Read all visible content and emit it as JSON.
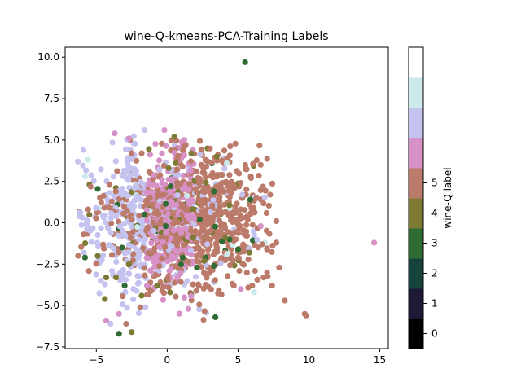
{
  "chart_data": {
    "type": "scatter",
    "title": "wine-Q-kmeans-PCA-Training Labels",
    "xlabel": "",
    "ylabel": "",
    "xlim": [
      -7.2,
      15.6
    ],
    "ylim": [
      -7.6,
      10.6
    ],
    "x_ticks": [
      -5,
      0,
      5,
      10,
      15
    ],
    "y_ticks": [
      -7.5,
      -5.0,
      -2.5,
      0.0,
      2.5,
      5.0,
      7.5,
      10.0
    ],
    "x_tick_labels": [
      "−5",
      "0",
      "5",
      "10",
      "15"
    ],
    "y_tick_labels": [
      "−7.5",
      "−5.0",
      "−2.5",
      "0.0",
      "2.5",
      "5.0",
      "7.5",
      "10.0"
    ],
    "grid": false,
    "colorbar": {
      "label": "wine-Q label",
      "tick_values": [
        0,
        1,
        2,
        3,
        4,
        5
      ],
      "tick_labels": [
        "0",
        "1",
        "2",
        "3",
        "4",
        "5"
      ],
      "levels": 10,
      "colors": [
        "#000000",
        "#1f1938",
        "#16433b",
        "#2e6c34",
        "#7c7a33",
        "#bc7a6a",
        "#d691c6",
        "#c4c2ef",
        "#cce9ec",
        "#ffffff"
      ]
    },
    "label_colors": {
      "3": "#2e6c34",
      "4": "#7c7a33",
      "5": "#bc7a6a",
      "6": "#d691c6",
      "7": "#c4c2ef",
      "8": "#cce9ec"
    },
    "cloud": {
      "center": [
        0.5,
        0.2
      ],
      "spread": [
        3.0,
        2.2
      ],
      "n_points": 1400
    },
    "points": [
      {
        "x": 5.5,
        "y": 9.7,
        "label": 3
      },
      {
        "x": 14.6,
        "y": -1.2,
        "label": 6
      },
      {
        "x": 9.7,
        "y": -5.5,
        "label": 5
      },
      {
        "x": 9.8,
        "y": -5.6,
        "label": 5
      },
      {
        "x": 8.3,
        "y": -4.7,
        "label": 5
      },
      {
        "x": 7.4,
        "y": -3.8,
        "label": 5
      },
      {
        "x": 7.9,
        "y": -2.7,
        "label": 5
      },
      {
        "x": 7.7,
        "y": 0.1,
        "label": 5
      },
      {
        "x": 7.7,
        "y": -1.2,
        "label": 5
      },
      {
        "x": 3.4,
        "y": -5.7,
        "label": 3
      },
      {
        "x": -3.4,
        "y": -6.7,
        "label": 3
      },
      {
        "x": -2.5,
        "y": -6.6,
        "label": 4
      },
      {
        "x": -4.0,
        "y": -6.1,
        "label": 7
      },
      {
        "x": -2.9,
        "y": -6.1,
        "label": 5
      },
      {
        "x": -5.8,
        "y": -2.1,
        "label": 3
      },
      {
        "x": -6.2,
        "y": 0.6,
        "label": 7
      },
      {
        "x": -6.3,
        "y": 3.7,
        "label": 7
      },
      {
        "x": -5.6,
        "y": 3.8,
        "label": 8
      },
      {
        "x": -5.8,
        "y": 2.8,
        "label": 8
      },
      {
        "x": -3.7,
        "y": 5.4,
        "label": 6
      },
      {
        "x": -1.6,
        "y": 5.6,
        "label": 7
      },
      {
        "x": -2.7,
        "y": 5.1,
        "label": 6
      },
      {
        "x": -0.2,
        "y": 5.6,
        "label": 6
      },
      {
        "x": 0.5,
        "y": 5.2,
        "label": 4
      },
      {
        "x": 1.7,
        "y": 4.2,
        "label": 4
      },
      {
        "x": 3.5,
        "y": 4.0,
        "label": 4
      },
      {
        "x": 1.2,
        "y": 5.0,
        "label": 6
      },
      {
        "x": 2.7,
        "y": 3.8,
        "label": 5
      },
      {
        "x": 3.3,
        "y": 1.9,
        "label": 3
      },
      {
        "x": 6.6,
        "y": 3.5,
        "label": 5
      },
      {
        "x": 5.9,
        "y": 2.8,
        "label": 5
      },
      {
        "x": 6.3,
        "y": 1.5,
        "label": 5
      },
      {
        "x": 6.1,
        "y": 0.9,
        "label": 5
      },
      {
        "x": 6.6,
        "y": -0.2,
        "label": 6
      },
      {
        "x": 6.7,
        "y": -1.3,
        "label": 5
      },
      {
        "x": 6.2,
        "y": -2.9,
        "label": 5
      },
      {
        "x": 6.8,
        "y": -3.3,
        "label": 5
      },
      {
        "x": 6.0,
        "y": -3.8,
        "label": 5
      },
      {
        "x": 5.2,
        "y": -4.0,
        "label": 6
      },
      {
        "x": 5.0,
        "y": -1.6,
        "label": 3
      },
      {
        "x": 5.8,
        "y": -1.8,
        "label": 4
      },
      {
        "x": 4.4,
        "y": -1.0,
        "label": 3
      },
      {
        "x": 2.7,
        "y": -2.1,
        "label": 3
      },
      {
        "x": 2.1,
        "y": -2.7,
        "label": 3
      },
      {
        "x": 1.1,
        "y": -2.1,
        "label": 3
      },
      {
        "x": 3.3,
        "y": -2.6,
        "label": 3
      },
      {
        "x": 2.6,
        "y": -2.3,
        "label": 4
      },
      {
        "x": 0.2,
        "y": -4.2,
        "label": 4
      },
      {
        "x": -0.7,
        "y": -3.8,
        "label": 4
      },
      {
        "x": -1.8,
        "y": -4.4,
        "label": 4
      },
      {
        "x": -3.0,
        "y": -3.8,
        "label": 3
      },
      {
        "x": -3.6,
        "y": -3.3,
        "label": 4
      },
      {
        "x": -4.4,
        "y": -4.6,
        "label": 4
      },
      {
        "x": -4.3,
        "y": -3.3,
        "label": 4
      },
      {
        "x": -2.7,
        "y": -2.5,
        "label": 4
      },
      {
        "x": -1.6,
        "y": 0.5,
        "label": 3
      },
      {
        "x": -0.1,
        "y": -0.2,
        "label": 3
      },
      {
        "x": 0.1,
        "y": 3.3,
        "label": 4
      },
      {
        "x": 0.6,
        "y": 3.6,
        "label": 4
      },
      {
        "x": 2.3,
        "y": 0.2,
        "label": 3
      },
      {
        "x": 4.1,
        "y": -0.9,
        "label": 4
      },
      {
        "x": 1.2,
        "y": -4.5,
        "label": 6
      },
      {
        "x": 1.5,
        "y": -5.2,
        "label": 6
      },
      {
        "x": -3.4,
        "y": -5.5,
        "label": 6
      },
      {
        "x": -4.3,
        "y": -5.9,
        "label": 6
      },
      {
        "x": -1.9,
        "y": -5.1,
        "label": 5
      },
      {
        "x": -4.9,
        "y": -2.0,
        "label": 4
      }
    ]
  }
}
